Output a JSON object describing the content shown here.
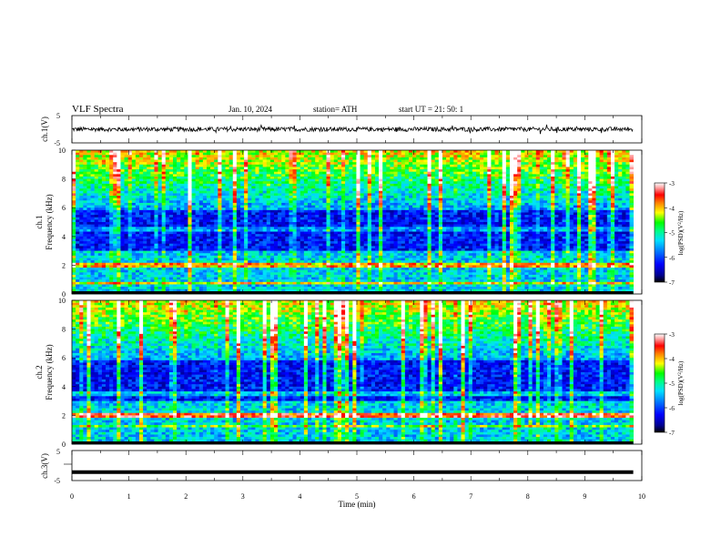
{
  "header": {
    "title": "VLF  Spectra",
    "date": "Jan.  10,  2024",
    "station": "station= ATH",
    "start": "start  UT  =    21: 50: 1"
  },
  "colors": {
    "background_low": "#000033",
    "colormap": [
      "#000000",
      "#000080",
      "#0000ff",
      "#0080ff",
      "#00ffff",
      "#00ff80",
      "#00ff00",
      "#ffff00",
      "#ff8000",
      "#ff0000",
      "#ffc0c0",
      "#ffffff"
    ]
  },
  "chart_data": [
    {
      "type": "line",
      "ylabel": "ch.1(V)",
      "ylim": [
        -5,
        5
      ],
      "ytick_labels": [
        "5",
        "-5"
      ],
      "xlim": [
        0,
        10
      ],
      "baseline": 0,
      "amplitude_range": [
        -1.5,
        1.5
      ]
    },
    {
      "type": "heatmap",
      "ylabel": "ch.1\nFrequency  (kHz)",
      "ylabel_line1": "ch.1",
      "ylabel_line2": "Frequency  (kHz)",
      "ylim": [
        0,
        10
      ],
      "ytick_labels": [
        "0",
        "2",
        "4",
        "6",
        "8",
        "10"
      ],
      "xlim": [
        0,
        9.85
      ],
      "colorbar": {
        "label": "log(PSD)(V²/Hz)",
        "label_text": "log(PSD)(V",
        "label_sup": "2",
        "label_tail": "/Hz)",
        "range": [
          -7,
          -3
        ],
        "tick_labels": [
          "-3",
          "-4",
          "-5",
          "-6",
          "-7"
        ]
      }
    },
    {
      "type": "heatmap",
      "ylabel_line1": "ch.2",
      "ylabel_line2": "Frequency  (kHz)",
      "ylim": [
        0,
        10
      ],
      "ytick_labels": [
        "0",
        "2",
        "4",
        "6",
        "8",
        "10"
      ],
      "xlim": [
        0,
        9.85
      ],
      "colorbar": {
        "label_text": "log(PSD)(V",
        "label_sup": "2",
        "label_tail": "/Hz)",
        "range": [
          -7,
          -3
        ],
        "tick_labels": [
          "-3",
          "-4",
          "-5",
          "-6",
          "-7"
        ]
      }
    },
    {
      "type": "line",
      "ylabel": "ch.3(V)",
      "ylim": [
        -5,
        5
      ],
      "ytick_labels": [
        "5",
        "-5"
      ],
      "xlim": [
        0,
        9.85
      ],
      "values_constant": -2.2
    }
  ],
  "xaxis": {
    "label": "Time  (min)",
    "range": [
      0,
      10
    ],
    "tick_labels": [
      "0",
      "1",
      "2",
      "3",
      "4",
      "5",
      "6",
      "7",
      "8",
      "9",
      "10"
    ]
  }
}
